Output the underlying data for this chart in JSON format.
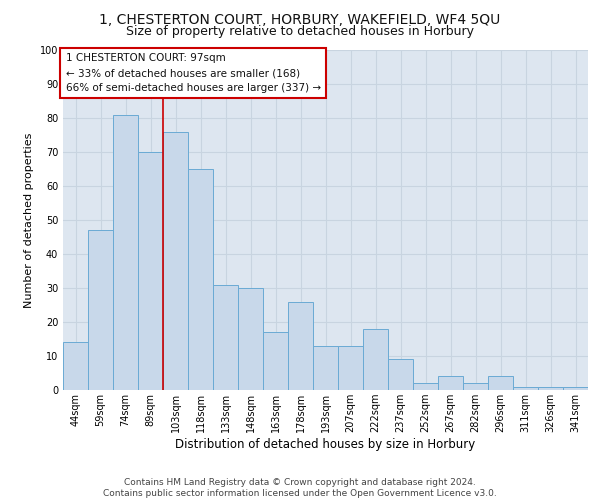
{
  "title1": "1, CHESTERTON COURT, HORBURY, WAKEFIELD, WF4 5QU",
  "title2": "Size of property relative to detached houses in Horbury",
  "xlabel": "Distribution of detached houses by size in Horbury",
  "ylabel": "Number of detached properties",
  "categories": [
    "44sqm",
    "59sqm",
    "74sqm",
    "89sqm",
    "103sqm",
    "118sqm",
    "133sqm",
    "148sqm",
    "163sqm",
    "178sqm",
    "193sqm",
    "207sqm",
    "222sqm",
    "237sqm",
    "252sqm",
    "267sqm",
    "282sqm",
    "296sqm",
    "311sqm",
    "326sqm",
    "341sqm"
  ],
  "values": [
    14,
    47,
    81,
    70,
    76,
    65,
    31,
    30,
    17,
    26,
    13,
    13,
    18,
    9,
    2,
    4,
    2,
    4,
    1,
    1,
    1
  ],
  "bar_color": "#c8d8ea",
  "bar_edge_color": "#6aaad4",
  "grid_color": "#c8d4e0",
  "background_color": "#dde6f0",
  "vline_color": "#cc0000",
  "annotation_text": "1 CHESTERTON COURT: 97sqm\n← 33% of detached houses are smaller (168)\n66% of semi-detached houses are larger (337) →",
  "annotation_box_color": "#ffffff",
  "annotation_box_edge": "#cc0000",
  "footer": "Contains HM Land Registry data © Crown copyright and database right 2024.\nContains public sector information licensed under the Open Government Licence v3.0.",
  "ylim": [
    0,
    100
  ],
  "title1_fontsize": 10,
  "title2_fontsize": 9,
  "xlabel_fontsize": 8.5,
  "ylabel_fontsize": 8,
  "tick_fontsize": 7,
  "annotation_fontsize": 7.5,
  "footer_fontsize": 6.5
}
